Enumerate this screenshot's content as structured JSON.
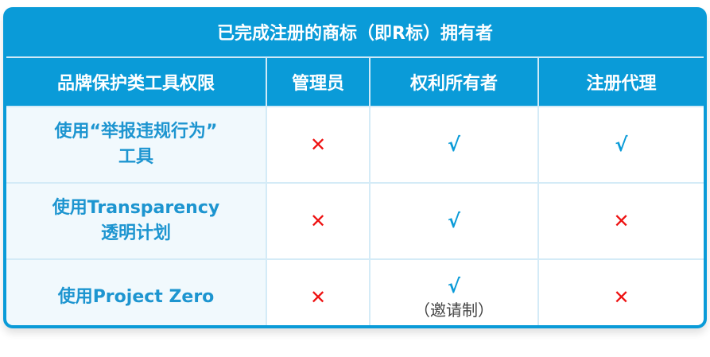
{
  "title": "已完成注册的商标（即R标）拥有者",
  "headers": [
    "品牌保护类工具权限",
    "管理员",
    "权利所有者",
    "注册代理"
  ],
  "rows": [
    {
      "label_lines": [
        "使用“举报违规行为”",
        "工具"
      ],
      "cells": [
        "✕",
        "√",
        "√"
      ],
      "notes": [
        "",
        "",
        ""
      ]
    },
    {
      "label_lines": [
        "使用Transparency",
        "透明计划"
      ],
      "cells": [
        "✕",
        "√",
        "✕"
      ],
      "notes": [
        "",
        "",
        ""
      ]
    },
    {
      "label_lines": [
        "使用Project Zero"
      ],
      "cells": [
        "✕",
        "√",
        "✕"
      ],
      "notes": [
        "",
        "（邀请制）",
        ""
      ]
    }
  ],
  "colors": {
    "accent": "#0a9bd8",
    "cross": "#ee1111"
  }
}
